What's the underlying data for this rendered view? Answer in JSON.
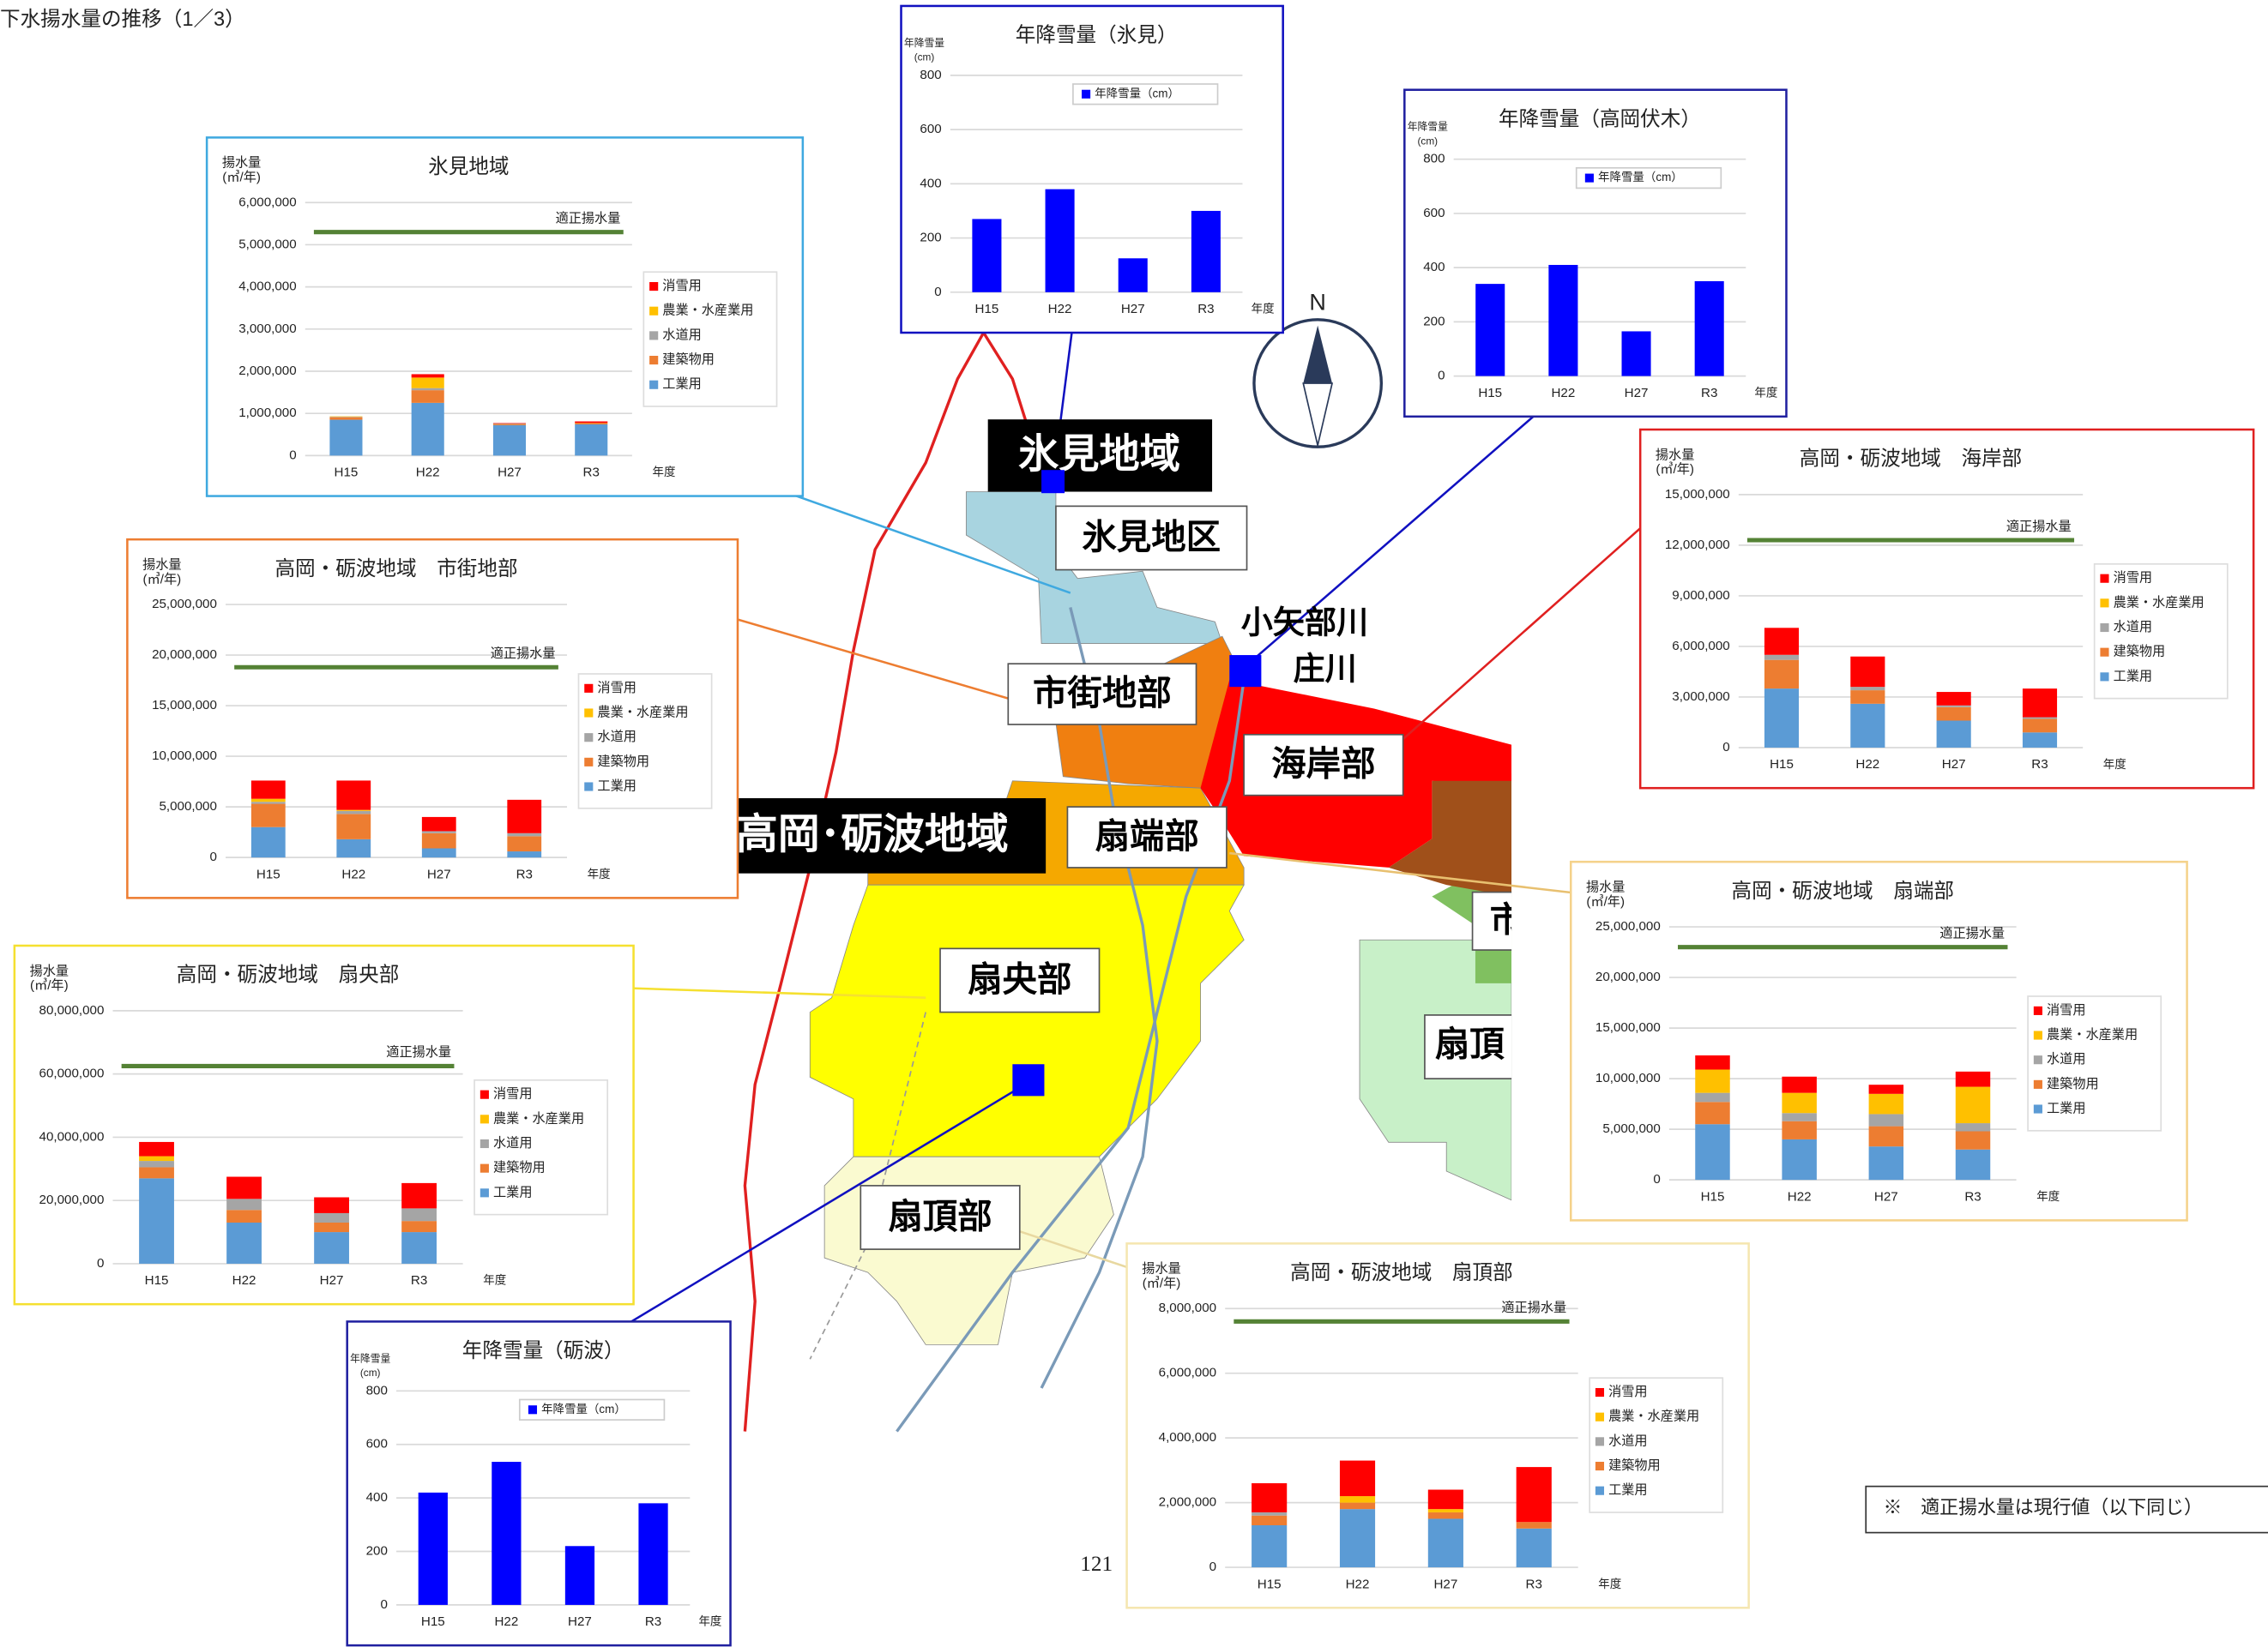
{
  "page": {
    "title": "下水揚水量の推移（1／3）",
    "note": "※　適正揚水量は現行値（以下同じ）",
    "page_number": "121"
  },
  "map": {
    "labels": {
      "himi_region": "氷見地域",
      "himi_district": "氷見地区",
      "urban": "市街地部",
      "coast": "海岸部",
      "fan_end": "扇端部",
      "takaoka_tonami": "高岡･砺波地域",
      "fan_center": "扇央部",
      "fan_top": "扇頂部",
      "oyabe": "小矢部川",
      "sho": "庄川",
      "city_cut": "市",
      "fan_top_cut": "扇頂"
    },
    "compass": "N"
  },
  "chart_data": [
    {
      "type": "bar",
      "stacked": true,
      "title": "氷見地域",
      "ylabel": [
        "揚水量",
        "(㎥/年)"
      ],
      "xlabel": "年度",
      "categories": [
        "H15",
        "H22",
        "H27",
        "R3"
      ],
      "frame_color": "#3fa9e0",
      "legend": "right",
      "grid": true,
      "ylim": [
        0,
        6000000
      ],
      "yticks": [
        0,
        {
          "value": 1000000,
          "label": "1,000,000"
        },
        {
          "value": 2000000,
          "label": "2,000,000"
        },
        {
          "value": 3000000,
          "label": "3,000,000"
        },
        {
          "value": 4000000,
          "label": "4,000,000"
        },
        {
          "value": 5000000,
          "label": "5,000,000"
        },
        {
          "value": 6000000,
          "label": "6,000,000"
        }
      ],
      "reference_line": {
        "label": "適正揚水量",
        "value": 5300000,
        "color": "#548235"
      },
      "series": [
        {
          "name": "工業用",
          "color": "#5b9bd5",
          "values": [
            850000,
            1250000,
            720000,
            740000
          ]
        },
        {
          "name": "建築物用",
          "color": "#ed7d31",
          "values": [
            60000,
            300000,
            30000,
            40000
          ]
        },
        {
          "name": "水道用",
          "color": "#a5a5a5",
          "values": [
            10000,
            50000,
            10000,
            0
          ]
        },
        {
          "name": "農業・水産業用",
          "color": "#ffc000",
          "values": [
            10000,
            250000,
            0,
            0
          ]
        },
        {
          "name": "消雪用",
          "color": "#ff0000",
          "values": [
            0,
            80000,
            10000,
            30000
          ]
        }
      ]
    },
    {
      "type": "bar",
      "stacked": true,
      "title": "高岡・砺波地域　市街地部",
      "ylabel": [
        "揚水量",
        "(㎥/年)"
      ],
      "xlabel": "年度",
      "categories": [
        "H15",
        "H22",
        "H27",
        "R3"
      ],
      "frame_color": "#ed7d31",
      "legend": "right",
      "grid": true,
      "ylim": [
        0,
        25000000
      ],
      "yticks": [
        0,
        {
          "value": 5000000,
          "label": "5,000,000"
        },
        {
          "value": 10000000,
          "label": "10,000,000"
        },
        {
          "value": 15000000,
          "label": "15,000,000"
        },
        {
          "value": 20000000,
          "label": "20,000,000"
        },
        {
          "value": 25000000,
          "label": "25,000,000"
        }
      ],
      "reference_line": {
        "label": "適正揚水量",
        "value": 18800000,
        "color": "#548235"
      },
      "series": [
        {
          "name": "工業用",
          "color": "#5b9bd5",
          "values": [
            3000000,
            1800000,
            900000,
            600000
          ]
        },
        {
          "name": "建築物用",
          "color": "#ed7d31",
          "values": [
            2300000,
            2500000,
            1500000,
            1500000
          ]
        },
        {
          "name": "水道用",
          "color": "#a5a5a5",
          "values": [
            200000,
            300000,
            200000,
            300000
          ]
        },
        {
          "name": "農業・水産業用",
          "color": "#ffc000",
          "values": [
            300000,
            100000,
            0,
            0
          ]
        },
        {
          "name": "消雪用",
          "color": "#ff0000",
          "values": [
            1800000,
            2900000,
            1400000,
            3300000
          ]
        }
      ]
    },
    {
      "type": "bar",
      "stacked": true,
      "title": "高岡・砺波地域　扇央部",
      "ylabel": [
        "揚水量",
        "(㎥/年)"
      ],
      "xlabel": "年度",
      "categories": [
        "H15",
        "H22",
        "H27",
        "R3"
      ],
      "frame_color": "#f5e030",
      "legend": "right",
      "grid": true,
      "ylim": [
        0,
        80000000
      ],
      "yticks": [
        0,
        {
          "value": 20000000,
          "label": "20,000,000"
        },
        {
          "value": 40000000,
          "label": "40,000,000"
        },
        {
          "value": 60000000,
          "label": "60,000,000"
        },
        {
          "value": 80000000,
          "label": "80,000,000"
        }
      ],
      "reference_line": {
        "label": "適正揚水量",
        "value": 62500000,
        "color": "#548235"
      },
      "series": [
        {
          "name": "工業用",
          "color": "#5b9bd5",
          "values": [
            27000000,
            13000000,
            10000000,
            10000000
          ]
        },
        {
          "name": "建築物用",
          "color": "#ed7d31",
          "values": [
            3500000,
            4000000,
            3000000,
            3500000
          ]
        },
        {
          "name": "水道用",
          "color": "#a5a5a5",
          "values": [
            2000000,
            3500000,
            3000000,
            4000000
          ]
        },
        {
          "name": "農業・水産業用",
          "color": "#ffc000",
          "values": [
            1500000,
            0,
            0,
            0
          ]
        },
        {
          "name": "消雪用",
          "color": "#ff0000",
          "values": [
            4500000,
            7000000,
            5000000,
            8000000
          ]
        }
      ]
    },
    {
      "type": "bar",
      "stacked": true,
      "title": "高岡・砺波地域　海岸部",
      "ylabel": [
        "揚水量",
        "(㎥/年)"
      ],
      "xlabel": "年度",
      "categories": [
        "H15",
        "H22",
        "H27",
        "R3"
      ],
      "frame_color": "#e02020",
      "legend": "right",
      "grid": true,
      "ylim": [
        0,
        15000000
      ],
      "yticks": [
        0,
        {
          "value": 3000000,
          "label": "3,000,000"
        },
        {
          "value": 6000000,
          "label": "6,000,000"
        },
        {
          "value": 9000000,
          "label": "9,000,000"
        },
        {
          "value": 12000000,
          "label": "12,000,000"
        },
        {
          "value": 15000000,
          "label": "15,000,000"
        }
      ],
      "reference_line": {
        "label": "適正揚水量",
        "value": 12300000,
        "color": "#548235"
      },
      "series": [
        {
          "name": "工業用",
          "color": "#5b9bd5",
          "values": [
            3500000,
            2600000,
            1600000,
            900000
          ]
        },
        {
          "name": "建築物用",
          "color": "#ed7d31",
          "values": [
            1700000,
            800000,
            800000,
            800000
          ]
        },
        {
          "name": "水道用",
          "color": "#a5a5a5",
          "values": [
            300000,
            200000,
            100000,
            100000
          ]
        },
        {
          "name": "農業・水産業用",
          "color": "#ffc000",
          "values": [
            0,
            0,
            0,
            0
          ]
        },
        {
          "name": "消雪用",
          "color": "#ff0000",
          "values": [
            1600000,
            1800000,
            800000,
            1700000
          ]
        }
      ]
    },
    {
      "type": "bar",
      "stacked": true,
      "title": "高岡・砺波地域　扇端部",
      "ylabel": [
        "揚水量",
        "(㎥/年)"
      ],
      "xlabel": "年度",
      "categories": [
        "H15",
        "H22",
        "H27",
        "R3"
      ],
      "frame_color": "#f5d28a",
      "legend": "right",
      "grid": true,
      "ylim": [
        0,
        25000000
      ],
      "yticks": [
        0,
        {
          "value": 5000000,
          "label": "5,000,000"
        },
        {
          "value": 10000000,
          "label": "10,000,000"
        },
        {
          "value": 15000000,
          "label": "15,000,000"
        },
        {
          "value": 20000000,
          "label": "20,000,000"
        },
        {
          "value": 25000000,
          "label": "25,000,000"
        }
      ],
      "reference_line": {
        "label": "適正揚水量",
        "value": 23000000,
        "color": "#548235"
      },
      "series": [
        {
          "name": "工業用",
          "color": "#5b9bd5",
          "values": [
            5500000,
            4000000,
            3300000,
            3000000
          ]
        },
        {
          "name": "建築物用",
          "color": "#ed7d31",
          "values": [
            2200000,
            1800000,
            2000000,
            1800000
          ]
        },
        {
          "name": "水道用",
          "color": "#a5a5a5",
          "values": [
            900000,
            800000,
            1200000,
            800000
          ]
        },
        {
          "name": "農業・水産業用",
          "color": "#ffc000",
          "values": [
            2300000,
            2000000,
            2000000,
            3600000
          ]
        },
        {
          "name": "消雪用",
          "color": "#ff0000",
          "values": [
            1400000,
            1600000,
            900000,
            1500000
          ]
        }
      ]
    },
    {
      "type": "bar",
      "stacked": true,
      "title": "高岡・砺波地域　扇頂部",
      "ylabel": [
        "揚水量",
        "(㎥/年)"
      ],
      "xlabel": "年度",
      "categories": [
        "H15",
        "H22",
        "H27",
        "R3"
      ],
      "frame_color": "#f5e6b0",
      "legend": "right",
      "grid": true,
      "ylim": [
        0,
        8000000
      ],
      "yticks": [
        0,
        {
          "value": 2000000,
          "label": "2,000,000"
        },
        {
          "value": 4000000,
          "label": "4,000,000"
        },
        {
          "value": 6000000,
          "label": "6,000,000"
        },
        {
          "value": 8000000,
          "label": "8,000,000"
        }
      ],
      "reference_line": {
        "label": "適正揚水量",
        "value": 7600000,
        "color": "#548235"
      },
      "series": [
        {
          "name": "工業用",
          "color": "#5b9bd5",
          "values": [
            1300000,
            1800000,
            1500000,
            1200000
          ]
        },
        {
          "name": "建築物用",
          "color": "#ed7d31",
          "values": [
            300000,
            200000,
            200000,
            200000
          ]
        },
        {
          "name": "水道用",
          "color": "#a5a5a5",
          "values": [
            100000,
            0,
            0,
            0
          ]
        },
        {
          "name": "農業・水産業用",
          "color": "#ffc000",
          "values": [
            0,
            200000,
            100000,
            0
          ]
        },
        {
          "name": "消雪用",
          "color": "#ff0000",
          "values": [
            900000,
            1100000,
            600000,
            1700000
          ]
        }
      ]
    },
    {
      "type": "bar",
      "stacked": false,
      "title": "年降雪量（氷見）",
      "ylabel": [
        "年降雪量",
        "(cm)"
      ],
      "xlabel": "年度",
      "categories": [
        "H15",
        "H22",
        "H27",
        "R3"
      ],
      "frame_color": "#1010c0",
      "legend": "top",
      "grid": true,
      "ylim": [
        0,
        800
      ],
      "yticks": [
        0,
        200,
        400,
        600,
        800
      ],
      "series": [
        {
          "name": "年降雪量（cm）",
          "color": "#0000ff",
          "values": [
            270,
            380,
            125,
            300
          ]
        }
      ]
    },
    {
      "type": "bar",
      "stacked": false,
      "title": "年降雪量（高岡伏木）",
      "ylabel": [
        "年降雪量",
        "(cm)"
      ],
      "xlabel": "年度",
      "categories": [
        "H15",
        "H22",
        "H27",
        "R3"
      ],
      "frame_color": "#2020a0",
      "legend": "top",
      "grid": true,
      "ylim": [
        0,
        800
      ],
      "yticks": [
        0,
        200,
        400,
        600,
        800
      ],
      "series": [
        {
          "name": "年降雪量（cm）",
          "color": "#0000ff",
          "values": [
            340,
            410,
            165,
            350
          ]
        }
      ]
    },
    {
      "type": "bar",
      "stacked": false,
      "title": "年降雪量（砺波）",
      "ylabel": [
        "年降雪量",
        "(cm)"
      ],
      "xlabel": "年度",
      "categories": [
        "H15",
        "H22",
        "H27",
        "R3"
      ],
      "frame_color": "#2020a0",
      "legend": "top",
      "grid": true,
      "ylim": [
        0,
        800
      ],
      "yticks": [
        0,
        200,
        400,
        600,
        800
      ],
      "series": [
        {
          "name": "年降雪量（cm）",
          "color": "#0000ff",
          "values": [
            420,
            535,
            220,
            380
          ]
        }
      ]
    }
  ]
}
